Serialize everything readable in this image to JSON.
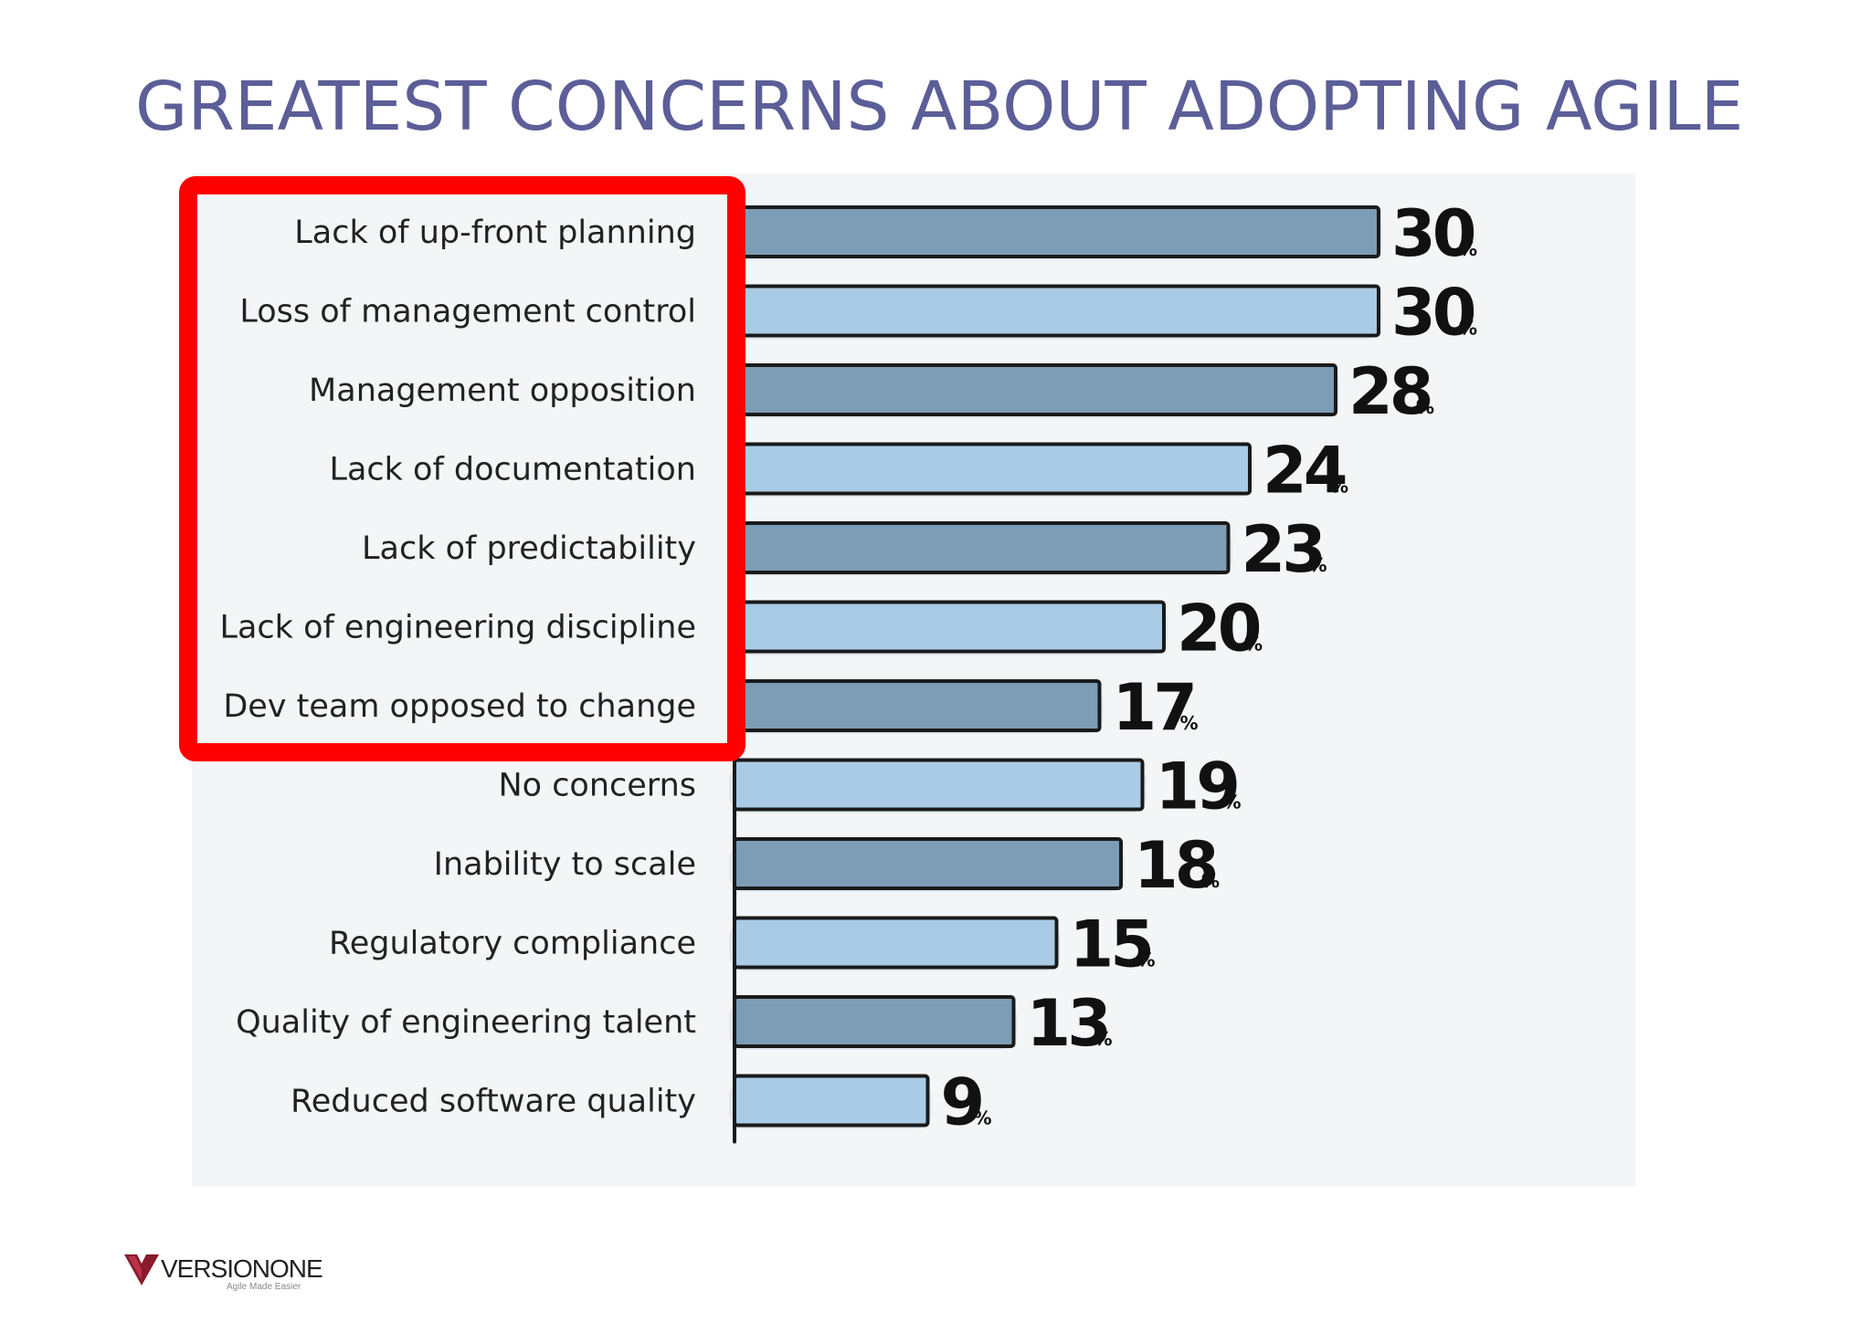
{
  "title": "GREATEST CONCERNS ABOUT ADOPTING AGILE",
  "logo": {
    "name": "VERSIONONE",
    "tagline": "Agile Made Easier"
  },
  "colors": {
    "title": "#5c5e98",
    "bar_dark": "#7d9cb5",
    "bar_light": "#a9cbe6",
    "highlight_box": "#ff0000"
  },
  "chart_data": {
    "type": "bar",
    "orientation": "horizontal",
    "value_suffix": "%",
    "categories": [
      "Lack of up-front planning",
      "Loss of management control",
      "Management opposition",
      "Lack of documentation",
      "Lack of predictability",
      "Lack of engineering discipline",
      "Dev team opposed to change",
      "No concerns",
      "Inability to scale",
      "Regulatory compliance",
      "Quality of engineering talent",
      "Reduced software quality"
    ],
    "values": [
      30,
      30,
      28,
      24,
      23,
      20,
      17,
      19,
      18,
      15,
      13,
      9
    ],
    "xlim": [
      0,
      30
    ],
    "highlighted_categories": [
      "Lack of up-front planning",
      "Loss of management control",
      "Management opposition",
      "Lack of documentation",
      "Lack of predictability",
      "Lack of engineering discipline",
      "Dev team opposed to change"
    ],
    "grid": false,
    "legend": "none"
  }
}
